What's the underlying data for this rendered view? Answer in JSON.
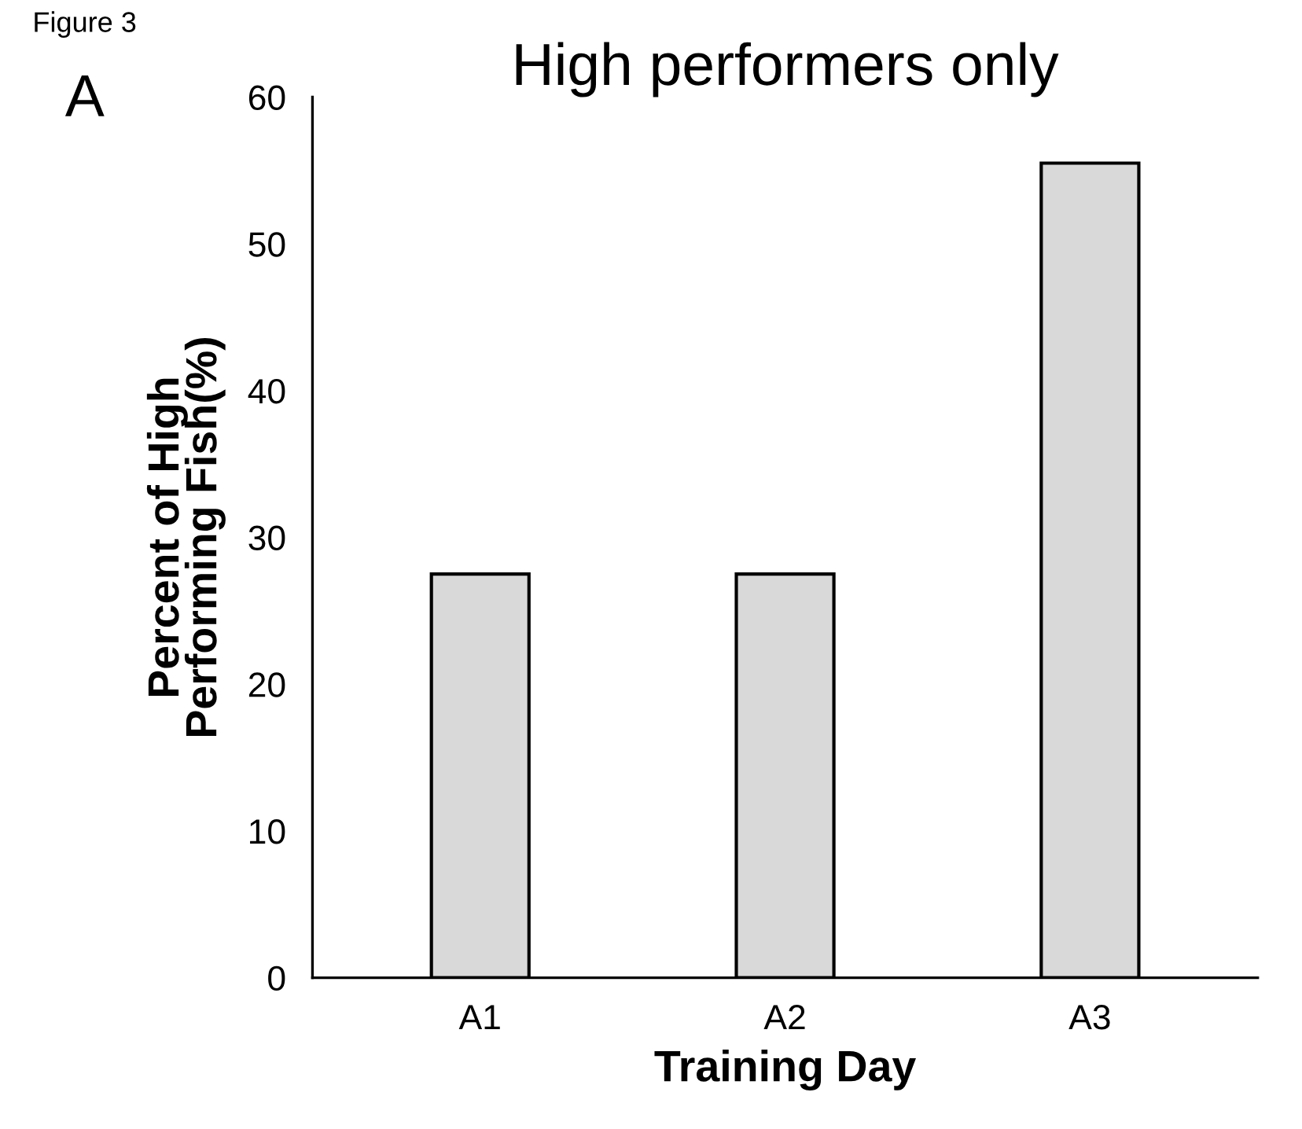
{
  "chart_data": {
    "type": "bar",
    "title": "High performers only",
    "xlabel": "Training Day",
    "ylabel": "Percent of High\nPerforming Fish(%)",
    "categories": [
      "A1",
      "A2",
      "A3"
    ],
    "values": [
      27.5,
      27.5,
      55.5
    ],
    "color": "#d9d9d9",
    "ylim": [
      0,
      60
    ],
    "yticks": [
      0,
      10,
      20,
      30,
      40,
      50,
      60
    ],
    "grid": false,
    "annotations": [
      "Figure 3",
      "A"
    ]
  }
}
